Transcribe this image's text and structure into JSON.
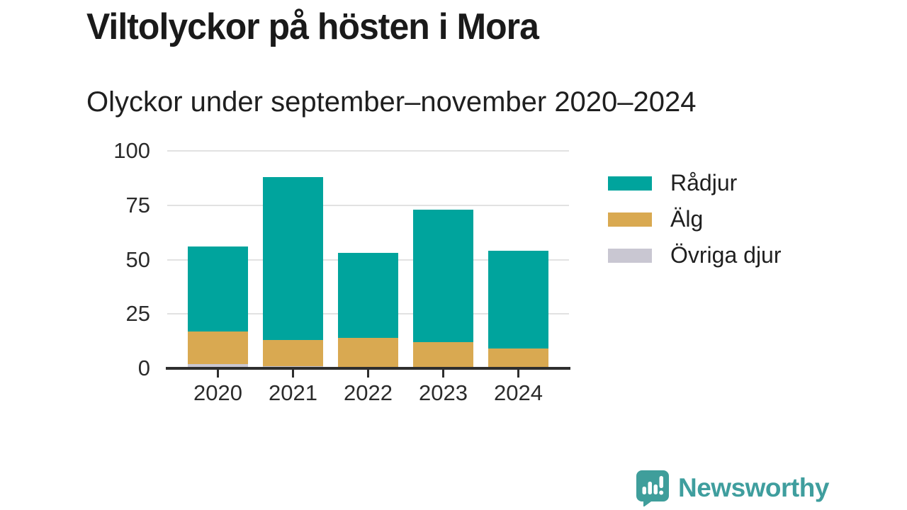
{
  "title": "Viltolyckor på hösten i Mora",
  "subtitle": "Olyckor under september–november 2020–2024",
  "chart_data": {
    "type": "bar",
    "stacked": true,
    "title": "Viltolyckor på hösten i Mora",
    "subtitle": "Olyckor under september–november 2020–2024",
    "categories": [
      "2020",
      "2021",
      "2022",
      "2023",
      "2024"
    ],
    "series": [
      {
        "name": "Rådjur",
        "color": "#00a49d",
        "values": [
          39,
          75,
          39,
          61,
          45
        ]
      },
      {
        "name": "Älg",
        "color": "#d9a951",
        "values": [
          15,
          12,
          14,
          12,
          9
        ]
      },
      {
        "name": "Övriga djur",
        "color": "#c9c7d2",
        "values": [
          2,
          1,
          0,
          0,
          0
        ]
      }
    ],
    "stack_order_bottom_to_top": [
      "Övriga djur",
      "Älg",
      "Rådjur"
    ],
    "stacked_totals": [
      56,
      88,
      53,
      73,
      54
    ],
    "xlabel": "",
    "ylabel": "",
    "ylim": [
      0,
      100
    ],
    "yticks": [
      0,
      25,
      50,
      75,
      100
    ],
    "grid": "horizontal",
    "legend_position": "right"
  },
  "legend": {
    "items": [
      "Rådjur",
      "Älg",
      "Övriga djur"
    ]
  },
  "branding": {
    "name": "Newsworthy",
    "icon": "speech-bubble-bar-chart-icon",
    "bubble_color": "#3f9e9b",
    "text_color": "#3f9e9e"
  },
  "colors": {
    "background": "#ffffff",
    "title_text": "#1a1a1a",
    "axis": "#2e2e2e",
    "gridline": "#e2e2e2",
    "tick_text": "#2b2b2b"
  }
}
